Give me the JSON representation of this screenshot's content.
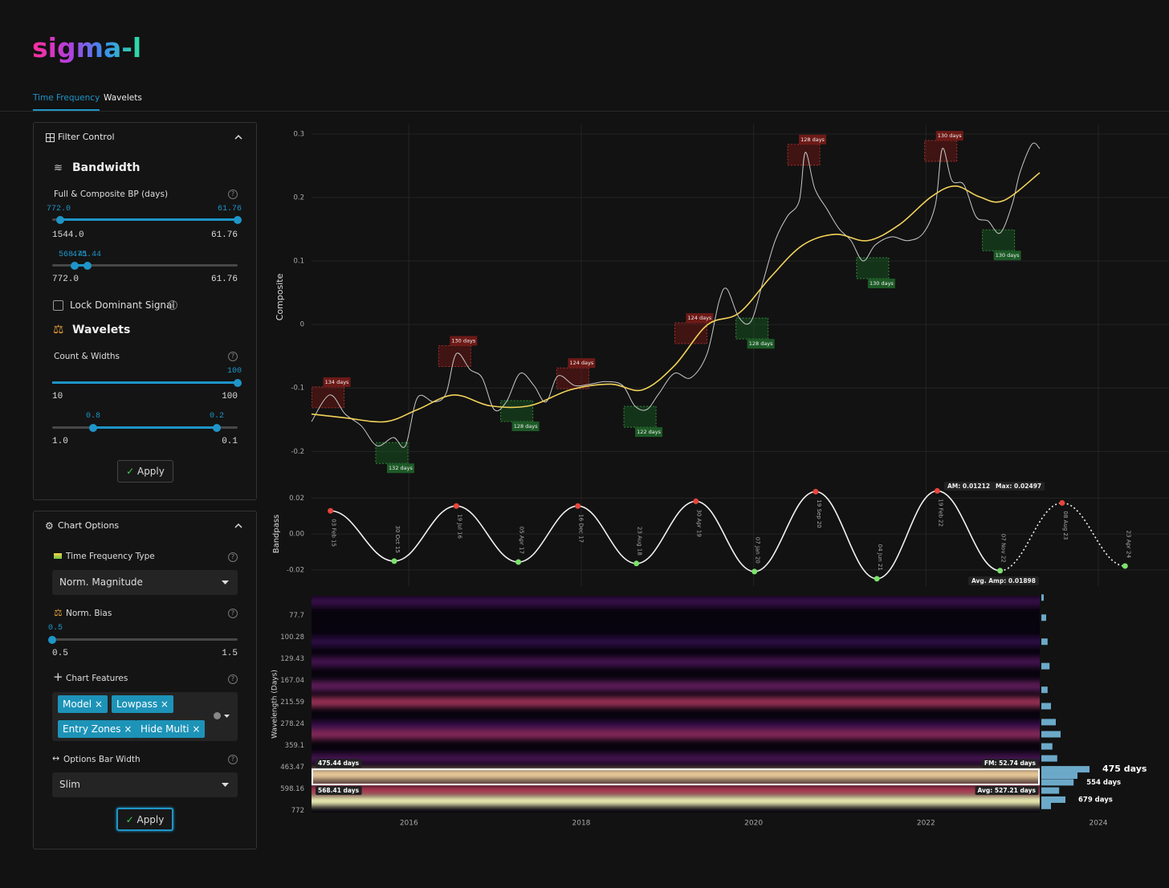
{
  "header": {
    "logo": "sigma-l"
  },
  "tabs": {
    "items": [
      "Time Frequency",
      "Wavelets"
    ],
    "active": 0
  },
  "filter_control": {
    "title": "Filter Control",
    "bandwidth": {
      "heading": "Bandwidth",
      "label": "Full & Composite BP (days)",
      "full": {
        "low": "772.0",
        "high": "61.76",
        "min": "1544.0",
        "max": "61.76"
      },
      "composite": {
        "low": "568.41",
        "high": "475.44",
        "min": "772.0",
        "max": "61.76"
      }
    },
    "lock_label": "Lock Dominant Signal",
    "wavelets": {
      "heading": "Wavelets",
      "label": "Count & Widths",
      "count": {
        "value": "100",
        "min": "10",
        "max": "100"
      },
      "widths": {
        "low": "0.8",
        "high": "0.2",
        "min": "1.0",
        "max": "0.1"
      }
    },
    "apply": "Apply"
  },
  "chart_options": {
    "title": "Chart Options",
    "tf_type": {
      "label": "Time Frequency Type",
      "selected": "Norm. Magnitude"
    },
    "norm_bias": {
      "label": "Norm. Bias",
      "value": "0.5",
      "min": "0.5",
      "max": "1.5"
    },
    "features": {
      "label": "Chart Features",
      "tags": [
        "Model",
        "Lowpass",
        "Entry Zones",
        "Hide Multi"
      ]
    },
    "bar_width": {
      "label": "Options Bar Width",
      "selected": "Slim"
    },
    "apply": "Apply"
  },
  "chart_data": [
    {
      "type": "line",
      "y_label": "Composite",
      "xlim": [
        2014.87,
        2024.82
      ],
      "ylim": [
        -0.235,
        0.315
      ],
      "yticks": [
        -0.2,
        -0.1,
        0,
        0.1,
        0.2,
        0.3
      ],
      "grid": true,
      "series": [
        {
          "color": "#c8c8c8",
          "x": [
            2014.87,
            2015.08,
            2015.26,
            2015.45,
            2015.63,
            2015.82,
            2015.96,
            2016.1,
            2016.29,
            2016.43,
            2016.55,
            2016.71,
            2016.85,
            2016.99,
            2017.13,
            2017.29,
            2017.45,
            2017.59,
            2017.73,
            2017.92,
            2018.1,
            2018.29,
            2018.48,
            2018.62,
            2018.76,
            2018.9,
            2019.08,
            2019.27,
            2019.46,
            2019.6,
            2019.69,
            2019.83,
            2019.97,
            2020.11,
            2020.25,
            2020.39,
            2020.53,
            2020.6,
            2020.71,
            2020.85,
            2020.99,
            2021.13,
            2021.27,
            2021.41,
            2021.6,
            2021.79,
            2021.97,
            2022.11,
            2022.19,
            2022.3,
            2022.44,
            2022.58,
            2022.72,
            2022.86,
            2023.0,
            2023.09,
            2023.23,
            2023.32
          ],
          "values": [
            -0.153,
            -0.111,
            -0.141,
            -0.16,
            -0.191,
            -0.178,
            -0.191,
            -0.115,
            -0.122,
            -0.109,
            -0.046,
            -0.071,
            -0.084,
            -0.134,
            -0.122,
            -0.077,
            -0.096,
            -0.122,
            -0.081,
            -0.096,
            -0.094,
            -0.09,
            -0.096,
            -0.128,
            -0.134,
            -0.109,
            -0.077,
            -0.084,
            -0.046,
            0.037,
            0.056,
            0.011,
            0.005,
            0.068,
            0.132,
            0.17,
            0.195,
            0.271,
            0.214,
            0.182,
            0.151,
            0.132,
            0.1,
            0.125,
            0.138,
            0.132,
            0.144,
            0.189,
            0.277,
            0.227,
            0.22,
            0.17,
            0.163,
            0.144,
            0.189,
            0.239,
            0.284,
            0.277
          ]
        },
        {
          "color": "#f2d35a",
          "x": [
            2014.87,
            2015.26,
            2015.73,
            2016.1,
            2016.52,
            2016.94,
            2017.4,
            2017.87,
            2018.34,
            2018.71,
            2019.08,
            2019.46,
            2019.83,
            2020.2,
            2020.57,
            2020.95,
            2021.32,
            2021.69,
            2022.06,
            2022.34,
            2022.62,
            2022.9,
            2023.32
          ],
          "values": [
            -0.141,
            -0.147,
            -0.153,
            -0.134,
            -0.111,
            -0.128,
            -0.128,
            -0.103,
            -0.094,
            -0.103,
            -0.065,
            -0.001,
            0.018,
            0.075,
            0.125,
            0.142,
            0.132,
            0.157,
            0.201,
            0.218,
            0.201,
            0.195,
            0.239
          ]
        }
      ],
      "turning_points": [
        {
          "kind": "peak",
          "x": 2015.08,
          "y": -0.111,
          "label": "134 days"
        },
        {
          "kind": "trough",
          "x": 2015.82,
          "y": -0.191,
          "label": "132 days"
        },
        {
          "kind": "peak",
          "x": 2016.55,
          "y": -0.046,
          "label": "130 days"
        },
        {
          "kind": "trough",
          "x": 2017.27,
          "y": -0.125,
          "label": "128 days"
        },
        {
          "kind": "peak",
          "x": 2017.92,
          "y": -0.081,
          "label": "124 days"
        },
        {
          "kind": "trough",
          "x": 2018.7,
          "y": -0.134,
          "label": "122 days"
        },
        {
          "kind": "peak",
          "x": 2019.29,
          "y": -0.01,
          "label": "124 days"
        },
        {
          "kind": "trough",
          "x": 2020.0,
          "y": 0.005,
          "label": "128 days"
        },
        {
          "kind": "peak",
          "x": 2020.6,
          "y": 0.271,
          "label": "128 days"
        },
        {
          "kind": "trough",
          "x": 2021.4,
          "y": 0.1,
          "label": "130 days"
        },
        {
          "kind": "peak",
          "x": 2022.19,
          "y": 0.277,
          "label": "130 days"
        },
        {
          "kind": "trough",
          "x": 2022.86,
          "y": 0.144,
          "label": "130 days"
        }
      ]
    },
    {
      "type": "line",
      "y_label": "Bandpass",
      "xlim": [
        2014.87,
        2024.82
      ],
      "ylim": [
        -0.029,
        0.03
      ],
      "yticks": [
        -0.02,
        {
          "value": 0,
          "label": "0.00"
        },
        0.02
      ],
      "grid": true,
      "x": [
        2015.09,
        2015.83,
        2016.55,
        2017.27,
        2017.96,
        2018.64,
        2019.33,
        2020.01,
        2020.72,
        2021.43,
        2022.13,
        2022.86,
        2023.58,
        2024.31
      ],
      "series": [
        {
          "color": "#f2f2f2",
          "values": [
            0.0129,
            -0.0151,
            0.0156,
            -0.0156,
            0.0156,
            -0.0164,
            0.0182,
            -0.0209,
            0.0236,
            -0.0249,
            0.024,
            -0.0204,
            0.0173,
            -0.0178
          ]
        }
      ],
      "date_labels": [
        "03 Feb 15",
        "30 Oct 15",
        "19 Jul 16",
        "05 Apr 17",
        "16 Dec 17",
        "23 Aug 18",
        "30 Apr 19",
        "07 Jan 20",
        "19 Sep 20",
        "04 Jun 21",
        "19 Feb 22",
        "07 Nov 22",
        "08 Aug 23",
        "23 Apr 24"
      ],
      "dashed_from_index": 11,
      "amplitude_labels": {
        "am": "AM: 0.01212",
        "max": "Max: 0.02497",
        "avg": "Avg. Amp: 0.01898"
      }
    },
    {
      "type": "heatmap",
      "y_label": "Wavelength (Days)",
      "xlim": [
        2014.87,
        2024.82
      ],
      "x_range": [
        2014.87,
        2023.32
      ],
      "xticks": [
        2016,
        2018,
        2020,
        2022,
        2024
      ],
      "ylim": [
        61.76,
        790
      ],
      "y_scale": "log",
      "y_reversed": true,
      "yticks": [
        77.7,
        100.28,
        129.43,
        167.04,
        215.59,
        278.24,
        359.1,
        463.47,
        598.16,
        772
      ],
      "bands": {
        "wavelengths": [
          66.2,
          106,
          134.5,
          178.5,
          215.7,
          286,
          314.7,
          418,
          504.6,
          610,
          689
        ],
        "intensity": [
          0.35,
          0.3,
          0.4,
          0.5,
          0.65,
          0.35,
          0.6,
          0.4,
          0.95,
          0.7,
          1.0
        ]
      },
      "highlight": {
        "low": 475.44,
        "high": 568.41,
        "low_label": "475.44 days",
        "high_label": "568.41 days",
        "fm_label": "FM: 52.74 days",
        "avg_label": "Avg: 527.21 days"
      },
      "profile": {
        "wavelengths": [
          63.1,
          79.9,
          106,
          141.3,
          186.7,
          226.2,
          272.9,
          314.7,
          363,
          418,
          475,
          512,
          554,
          610,
          679,
          731
        ],
        "values": [
          5,
          10,
          13,
          17,
          13,
          20,
          30,
          40,
          23,
          33,
          100,
          75,
          67,
          37,
          50,
          20
        ],
        "peaks": [
          {
            "wavelength": 475,
            "label": "475 days"
          },
          {
            "wavelength": 554,
            "label": "554 days"
          },
          {
            "wavelength": 679,
            "label": "679 days"
          }
        ]
      }
    }
  ]
}
